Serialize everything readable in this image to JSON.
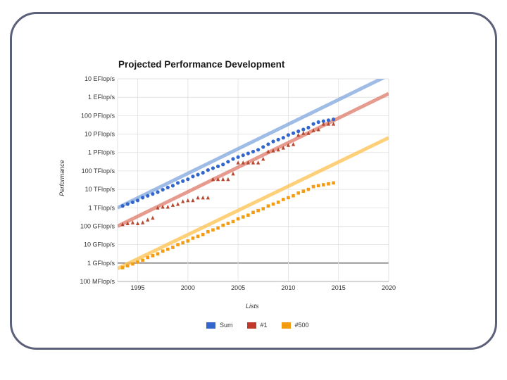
{
  "chart_data": {
    "type": "scatter",
    "title": "Projected Performance Development",
    "xlabel": "Lists",
    "ylabel": "Performance",
    "xlim": [
      1993,
      2020
    ],
    "ylim_log10_flops": [
      8,
      19
    ],
    "y_scale": "log",
    "x_ticks": [
      "1995",
      "2000",
      "2005",
      "2010",
      "2015",
      "2020"
    ],
    "x_tick_values": [
      1995,
      2000,
      2005,
      2010,
      2015,
      2020
    ],
    "y_ticks": [
      "10 EFlop/s",
      "1 EFlop/s",
      "100 PFlop/s",
      "10 PFlop/s",
      "1 PFlop/s",
      "100 TFlop/s",
      "10 TFlop/s",
      "1 TFlop/s",
      "100 GFlop/s",
      "10 GFlop/s",
      "1 GFlop/s",
      "100 MFlop/s"
    ],
    "y_tick_exponents": [
      19,
      18,
      17,
      16,
      15,
      14,
      13,
      12,
      11,
      10,
      9,
      8
    ],
    "grid": true,
    "legend_position": "bottom",
    "series": [
      {
        "name": "Sum",
        "marker": "circle",
        "color": "#3366cc",
        "trend_color": "#7fa6dd",
        "trend": {
          "x": [
            1993,
            2020
          ],
          "y_log10": [
            12.0,
            19.2
          ]
        },
        "points": [
          {
            "x": 1993.5,
            "y_log10": 12.1
          },
          {
            "x": 1994.0,
            "y_log10": 12.2
          },
          {
            "x": 1994.5,
            "y_log10": 12.3
          },
          {
            "x": 1995.0,
            "y_log10": 12.4
          },
          {
            "x": 1995.5,
            "y_log10": 12.55
          },
          {
            "x": 1996.0,
            "y_log10": 12.65
          },
          {
            "x": 1996.5,
            "y_log10": 12.75
          },
          {
            "x": 1997.0,
            "y_log10": 12.85
          },
          {
            "x": 1997.5,
            "y_log10": 12.98
          },
          {
            "x": 1998.0,
            "y_log10": 13.1
          },
          {
            "x": 1998.5,
            "y_log10": 13.2
          },
          {
            "x": 1999.0,
            "y_log10": 13.35
          },
          {
            "x": 1999.5,
            "y_log10": 13.45
          },
          {
            "x": 2000.0,
            "y_log10": 13.55
          },
          {
            "x": 2000.5,
            "y_log10": 13.7
          },
          {
            "x": 2001.0,
            "y_log10": 13.8
          },
          {
            "x": 2001.5,
            "y_log10": 13.9
          },
          {
            "x": 2002.0,
            "y_log10": 14.05
          },
          {
            "x": 2002.5,
            "y_log10": 14.15
          },
          {
            "x": 2003.0,
            "y_log10": 14.25
          },
          {
            "x": 2003.5,
            "y_log10": 14.35
          },
          {
            "x": 2004.0,
            "y_log10": 14.5
          },
          {
            "x": 2004.5,
            "y_log10": 14.65
          },
          {
            "x": 2005.0,
            "y_log10": 14.75
          },
          {
            "x": 2005.5,
            "y_log10": 14.85
          },
          {
            "x": 2006.0,
            "y_log10": 14.95
          },
          {
            "x": 2006.5,
            "y_log10": 15.05
          },
          {
            "x": 2007.0,
            "y_log10": 15.15
          },
          {
            "x": 2007.5,
            "y_log10": 15.3
          },
          {
            "x": 2008.0,
            "y_log10": 15.45
          },
          {
            "x": 2008.5,
            "y_log10": 15.6
          },
          {
            "x": 2009.0,
            "y_log10": 15.7
          },
          {
            "x": 2009.5,
            "y_log10": 15.8
          },
          {
            "x": 2010.0,
            "y_log10": 15.95
          },
          {
            "x": 2010.5,
            "y_log10": 16.05
          },
          {
            "x": 2011.0,
            "y_log10": 16.15
          },
          {
            "x": 2011.5,
            "y_log10": 16.25
          },
          {
            "x": 2012.0,
            "y_log10": 16.35
          },
          {
            "x": 2012.5,
            "y_log10": 16.55
          },
          {
            "x": 2013.0,
            "y_log10": 16.65
          },
          {
            "x": 2013.5,
            "y_log10": 16.7
          },
          {
            "x": 2014.0,
            "y_log10": 16.75
          },
          {
            "x": 2014.5,
            "y_log10": 16.8
          }
        ]
      },
      {
        "name": "#1",
        "marker": "triangle",
        "color": "#b5482e",
        "trend_color": "#df7a68",
        "trend": {
          "x": [
            1993,
            2020
          ],
          "y_log10": [
            11.0,
            18.2
          ]
        },
        "points": [
          {
            "x": 1993.5,
            "y_log10": 11.1
          },
          {
            "x": 1994.0,
            "y_log10": 11.15
          },
          {
            "x": 1994.5,
            "y_log10": 11.2
          },
          {
            "x": 1995.0,
            "y_log10": 11.15
          },
          {
            "x": 1995.5,
            "y_log10": 11.2
          },
          {
            "x": 1996.0,
            "y_log10": 11.35
          },
          {
            "x": 1996.5,
            "y_log10": 11.45
          },
          {
            "x": 1997.0,
            "y_log10": 12.0
          },
          {
            "x": 1997.5,
            "y_log10": 12.05
          },
          {
            "x": 1998.0,
            "y_log10": 12.05
          },
          {
            "x": 1998.5,
            "y_log10": 12.15
          },
          {
            "x": 1999.0,
            "y_log10": 12.2
          },
          {
            "x": 1999.5,
            "y_log10": 12.35
          },
          {
            "x": 2000.0,
            "y_log10": 12.4
          },
          {
            "x": 2000.5,
            "y_log10": 12.4
          },
          {
            "x": 2001.0,
            "y_log10": 12.55
          },
          {
            "x": 2001.5,
            "y_log10": 12.55
          },
          {
            "x": 2002.0,
            "y_log10": 12.55
          },
          {
            "x": 2002.5,
            "y_log10": 13.55
          },
          {
            "x": 2003.0,
            "y_log10": 13.55
          },
          {
            "x": 2003.5,
            "y_log10": 13.55
          },
          {
            "x": 2004.0,
            "y_log10": 13.55
          },
          {
            "x": 2004.5,
            "y_log10": 13.85
          },
          {
            "x": 2005.0,
            "y_log10": 14.45
          },
          {
            "x": 2005.5,
            "y_log10": 14.45
          },
          {
            "x": 2006.0,
            "y_log10": 14.45
          },
          {
            "x": 2006.5,
            "y_log10": 14.45
          },
          {
            "x": 2007.0,
            "y_log10": 14.45
          },
          {
            "x": 2007.5,
            "y_log10": 14.65
          },
          {
            "x": 2008.0,
            "y_log10": 15.05
          },
          {
            "x": 2008.5,
            "y_log10": 15.1
          },
          {
            "x": 2009.0,
            "y_log10": 15.15
          },
          {
            "x": 2009.5,
            "y_log10": 15.25
          },
          {
            "x": 2010.0,
            "y_log10": 15.4
          },
          {
            "x": 2010.5,
            "y_log10": 15.45
          },
          {
            "x": 2011.0,
            "y_log10": 15.95
          },
          {
            "x": 2011.5,
            "y_log10": 16.05
          },
          {
            "x": 2012.0,
            "y_log10": 16.05
          },
          {
            "x": 2012.5,
            "y_log10": 16.2
          },
          {
            "x": 2013.0,
            "y_log10": 16.25
          },
          {
            "x": 2013.5,
            "y_log10": 16.55
          },
          {
            "x": 2014.0,
            "y_log10": 16.55
          },
          {
            "x": 2014.5,
            "y_log10": 16.55
          }
        ]
      },
      {
        "name": "#500",
        "marker": "square",
        "color": "#f39c12",
        "trend_color": "#ffc04d",
        "trend": {
          "x": [
            1993,
            2020
          ],
          "y_log10": [
            8.7,
            15.8
          ]
        },
        "points": [
          {
            "x": 1993.5,
            "y_log10": 8.75
          },
          {
            "x": 1994.0,
            "y_log10": 8.85
          },
          {
            "x": 1994.5,
            "y_log10": 8.95
          },
          {
            "x": 1995.0,
            "y_log10": 9.05
          },
          {
            "x": 1995.5,
            "y_log10": 9.15
          },
          {
            "x": 1996.0,
            "y_log10": 9.3
          },
          {
            "x": 1996.5,
            "y_log10": 9.4
          },
          {
            "x": 1997.0,
            "y_log10": 9.5
          },
          {
            "x": 1997.5,
            "y_log10": 9.65
          },
          {
            "x": 1998.0,
            "y_log10": 9.75
          },
          {
            "x": 1998.5,
            "y_log10": 9.85
          },
          {
            "x": 1999.0,
            "y_log10": 10.0
          },
          {
            "x": 1999.5,
            "y_log10": 10.1
          },
          {
            "x": 2000.0,
            "y_log10": 10.2
          },
          {
            "x": 2000.5,
            "y_log10": 10.35
          },
          {
            "x": 2001.0,
            "y_log10": 10.45
          },
          {
            "x": 2001.5,
            "y_log10": 10.55
          },
          {
            "x": 2002.0,
            "y_log10": 10.7
          },
          {
            "x": 2002.5,
            "y_log10": 10.8
          },
          {
            "x": 2003.0,
            "y_log10": 10.9
          },
          {
            "x": 2003.5,
            "y_log10": 11.05
          },
          {
            "x": 2004.0,
            "y_log10": 11.15
          },
          {
            "x": 2004.5,
            "y_log10": 11.25
          },
          {
            "x": 2005.0,
            "y_log10": 11.4
          },
          {
            "x": 2005.5,
            "y_log10": 11.5
          },
          {
            "x": 2006.0,
            "y_log10": 11.6
          },
          {
            "x": 2006.5,
            "y_log10": 11.75
          },
          {
            "x": 2007.0,
            "y_log10": 11.85
          },
          {
            "x": 2007.5,
            "y_log10": 11.95
          },
          {
            "x": 2008.0,
            "y_log10": 12.1
          },
          {
            "x": 2008.5,
            "y_log10": 12.2
          },
          {
            "x": 2009.0,
            "y_log10": 12.3
          },
          {
            "x": 2009.5,
            "y_log10": 12.45
          },
          {
            "x": 2010.0,
            "y_log10": 12.55
          },
          {
            "x": 2010.5,
            "y_log10": 12.65
          },
          {
            "x": 2011.0,
            "y_log10": 12.8
          },
          {
            "x": 2011.5,
            "y_log10": 12.9
          },
          {
            "x": 2012.0,
            "y_log10": 13.0
          },
          {
            "x": 2012.5,
            "y_log10": 13.15
          },
          {
            "x": 2013.0,
            "y_log10": 13.2
          },
          {
            "x": 2013.5,
            "y_log10": 13.25
          },
          {
            "x": 2014.0,
            "y_log10": 13.3
          },
          {
            "x": 2014.5,
            "y_log10": 13.35
          }
        ]
      }
    ],
    "legend": [
      {
        "label": "Sum",
        "color": "#3366cc"
      },
      {
        "label": "#1",
        "color": "#c0392b"
      },
      {
        "label": "#500",
        "color": "#f39c12"
      }
    ]
  }
}
